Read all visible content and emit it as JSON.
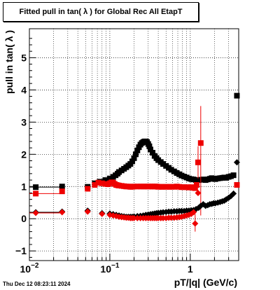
{
  "title": "Fitted pull in tan( λ ) for Global Rec All EtapT",
  "timestamp": "Thu Dec 12 08:23:11 2024",
  "chart_data": {
    "type": "scatter",
    "title": "Fitted pull in tan( λ ) for Global Rec All EtapT",
    "xlabel": "pT/|q| (GeV/c)",
    "ylabel": "pull in tan( λ )",
    "xscale": "log",
    "xlim": [
      0.01,
      4.0
    ],
    "ylim": [
      -1.3,
      5.9
    ],
    "grid": true,
    "x_tick_labels": [
      {
        "value": 0.01,
        "base": "10",
        "exp": "−2"
      },
      {
        "value": 0.1,
        "base": "10",
        "exp": "−1"
      },
      {
        "value": 1,
        "base": "1",
        "exp": ""
      }
    ],
    "y_tick_labels": [
      "−1",
      "0",
      "1",
      "2",
      "3",
      "4",
      "5"
    ],
    "y_tick_values": [
      -1,
      0,
      1,
      2,
      3,
      4,
      5
    ],
    "series": [
      {
        "color": "#000000",
        "marker": "square",
        "points": [
          [
            0.012,
            0.98
          ],
          [
            0.0255,
            1.0
          ],
          [
            0.053,
            0.99
          ],
          [
            0.065,
            1.1
          ],
          [
            0.075,
            1.15
          ],
          [
            0.088,
            1.2
          ],
          [
            0.1,
            1.25
          ],
          [
            0.11,
            1.3
          ],
          [
            0.118,
            1.35
          ],
          [
            0.125,
            1.4
          ],
          [
            0.13,
            1.45
          ],
          [
            0.14,
            1.5
          ],
          [
            0.15,
            1.55
          ],
          [
            0.16,
            1.6
          ],
          [
            0.17,
            1.65
          ],
          [
            0.18,
            1.7
          ],
          [
            0.19,
            1.78
          ],
          [
            0.2,
            1.88
          ],
          [
            0.21,
            2.0
          ],
          [
            0.22,
            2.12
          ],
          [
            0.23,
            2.22
          ],
          [
            0.24,
            2.3
          ],
          [
            0.25,
            2.35
          ],
          [
            0.26,
            2.38
          ],
          [
            0.27,
            2.4
          ],
          [
            0.28,
            2.4
          ],
          [
            0.29,
            2.38
          ],
          [
            0.3,
            2.32
          ],
          [
            0.31,
            2.25
          ],
          [
            0.32,
            2.15
          ],
          [
            0.34,
            2.05
          ],
          [
            0.36,
            1.95
          ],
          [
            0.38,
            1.88
          ],
          [
            0.4,
            1.82
          ],
          [
            0.43,
            1.76
          ],
          [
            0.46,
            1.7
          ],
          [
            0.5,
            1.64
          ],
          [
            0.54,
            1.58
          ],
          [
            0.58,
            1.52
          ],
          [
            0.63,
            1.47
          ],
          [
            0.68,
            1.42
          ],
          [
            0.73,
            1.38
          ],
          [
            0.78,
            1.34
          ],
          [
            0.84,
            1.31
          ],
          [
            0.9,
            1.28
          ],
          [
            0.96,
            1.25
          ],
          [
            1.03,
            1.23
          ],
          [
            1.1,
            1.22
          ],
          [
            1.18,
            1.2
          ],
          [
            1.27,
            1.2
          ],
          [
            1.35,
            1.21
          ],
          [
            1.45,
            1.22
          ],
          [
            1.55,
            1.2
          ],
          [
            1.65,
            1.22
          ],
          [
            1.75,
            1.24
          ],
          [
            1.85,
            1.26
          ],
          [
            1.95,
            1.24
          ],
          [
            2.05,
            1.23
          ],
          [
            2.2,
            1.25
          ],
          [
            2.35,
            1.26
          ],
          [
            2.5,
            1.27
          ],
          [
            2.65,
            1.28
          ],
          [
            2.8,
            1.27
          ],
          [
            3.0,
            1.3
          ],
          [
            3.2,
            1.32
          ],
          [
            3.45,
            1.35
          ],
          [
            3.8,
            3.82
          ]
        ]
      },
      {
        "color": "#ee0000",
        "marker": "square",
        "points": [
          [
            0.012,
            0.78
          ],
          [
            0.0255,
            0.85
          ],
          [
            0.053,
            0.93
          ],
          [
            0.065,
            1.05
          ],
          [
            0.072,
            1.12
          ],
          [
            0.08,
            1.1
          ],
          [
            0.088,
            1.08
          ],
          [
            0.095,
            1.07
          ],
          [
            0.1,
            1.1
          ],
          [
            0.105,
            1.13
          ],
          [
            0.11,
            1.12
          ],
          [
            0.115,
            1.08
          ],
          [
            0.12,
            1.05
          ],
          [
            0.125,
            1.04
          ],
          [
            0.13,
            1.03
          ],
          [
            0.14,
            1.02
          ],
          [
            0.15,
            1.01
          ],
          [
            0.16,
            1.0
          ],
          [
            0.17,
            1.0
          ],
          [
            0.18,
            0.99
          ],
          [
            0.19,
            0.99
          ],
          [
            0.2,
            1.0
          ],
          [
            0.22,
            1.0
          ],
          [
            0.24,
            1.0
          ],
          [
            0.26,
            1.0
          ],
          [
            0.28,
            1.0
          ],
          [
            0.3,
            1.0
          ],
          [
            0.32,
            1.0
          ],
          [
            0.34,
            1.0
          ],
          [
            0.36,
            1.0
          ],
          [
            0.38,
            1.0
          ],
          [
            0.4,
            0.99
          ],
          [
            0.43,
            0.99
          ],
          [
            0.46,
            0.99
          ],
          [
            0.5,
            0.99
          ],
          [
            0.54,
            0.99
          ],
          [
            0.58,
            0.99
          ],
          [
            0.63,
            0.99
          ],
          [
            0.68,
            1.0
          ],
          [
            0.73,
            0.99
          ],
          [
            0.78,
            0.98
          ],
          [
            0.84,
            0.98
          ],
          [
            0.9,
            0.98
          ],
          [
            0.96,
            0.97
          ],
          [
            1.03,
            0.98
          ],
          [
            1.1,
            0.96
          ],
          [
            1.15,
            0.95
          ],
          [
            1.2,
            1.05
          ],
          [
            1.25,
            1.75
          ],
          [
            1.35,
            2.35
          ],
          [
            3.8,
            1.05
          ]
        ],
        "error_bars": [
          {
            "x": 1.35,
            "low": 0.1,
            "high": 3.5
          },
          {
            "x": 1.25,
            "low": 1.25,
            "high": 2.25
          }
        ]
      },
      {
        "color": "#000000",
        "marker": "diamond",
        "points": [
          [
            0.012,
            0.2
          ],
          [
            0.0255,
            0.22
          ],
          [
            0.053,
            0.25
          ],
          [
            0.08,
            0.17
          ],
          [
            0.1,
            0.16
          ],
          [
            0.11,
            0.14
          ],
          [
            0.12,
            0.12
          ],
          [
            0.13,
            0.1
          ],
          [
            0.14,
            0.08
          ],
          [
            0.15,
            0.07
          ],
          [
            0.16,
            0.06
          ],
          [
            0.17,
            0.06
          ],
          [
            0.18,
            0.06
          ],
          [
            0.19,
            0.06
          ],
          [
            0.2,
            0.07
          ],
          [
            0.22,
            0.08
          ],
          [
            0.24,
            0.09
          ],
          [
            0.26,
            0.1
          ],
          [
            0.28,
            0.12
          ],
          [
            0.3,
            0.13
          ],
          [
            0.32,
            0.14
          ],
          [
            0.34,
            0.15
          ],
          [
            0.36,
            0.16
          ],
          [
            0.38,
            0.17
          ],
          [
            0.4,
            0.18
          ],
          [
            0.43,
            0.19
          ],
          [
            0.46,
            0.2
          ],
          [
            0.5,
            0.21
          ],
          [
            0.54,
            0.22
          ],
          [
            0.58,
            0.22
          ],
          [
            0.63,
            0.23
          ],
          [
            0.68,
            0.23
          ],
          [
            0.73,
            0.24
          ],
          [
            0.78,
            0.24
          ],
          [
            0.84,
            0.24
          ],
          [
            0.9,
            0.25
          ],
          [
            0.96,
            0.25
          ],
          [
            1.03,
            0.26
          ],
          [
            1.1,
            0.27
          ],
          [
            1.18,
            0.3
          ],
          [
            1.27,
            0.34
          ],
          [
            1.35,
            0.4
          ],
          [
            1.45,
            0.45
          ],
          [
            1.55,
            0.4
          ],
          [
            1.65,
            0.42
          ],
          [
            1.75,
            0.45
          ],
          [
            1.85,
            0.46
          ],
          [
            1.95,
            0.48
          ],
          [
            2.05,
            0.48
          ],
          [
            2.2,
            0.5
          ],
          [
            2.35,
            0.52
          ],
          [
            2.5,
            0.54
          ],
          [
            2.65,
            0.56
          ],
          [
            2.8,
            0.6
          ],
          [
            3.0,
            0.65
          ],
          [
            3.2,
            0.7
          ],
          [
            3.45,
            0.78
          ],
          [
            3.8,
            1.75
          ]
        ]
      },
      {
        "color": "#ee0000",
        "marker": "diamond",
        "points": [
          [
            0.012,
            0.18
          ],
          [
            0.0255,
            0.2
          ],
          [
            0.053,
            0.22
          ],
          [
            0.08,
            0.15
          ],
          [
            0.1,
            0.12
          ],
          [
            0.11,
            0.1
          ],
          [
            0.12,
            0.08
          ],
          [
            0.13,
            0.06
          ],
          [
            0.14,
            0.05
          ],
          [
            0.15,
            0.04
          ],
          [
            0.16,
            0.03
          ],
          [
            0.17,
            0.03
          ],
          [
            0.18,
            0.02
          ],
          [
            0.19,
            0.02
          ],
          [
            0.2,
            0.02
          ],
          [
            0.22,
            0.02
          ],
          [
            0.24,
            0.02
          ],
          [
            0.26,
            0.02
          ],
          [
            0.28,
            0.02
          ],
          [
            0.3,
            0.02
          ],
          [
            0.32,
            0.02
          ],
          [
            0.34,
            0.02
          ],
          [
            0.36,
            0.02
          ],
          [
            0.38,
            0.02
          ],
          [
            0.4,
            0.02
          ],
          [
            0.43,
            0.02
          ],
          [
            0.46,
            0.02
          ],
          [
            0.5,
            0.02
          ],
          [
            0.54,
            0.03
          ],
          [
            0.58,
            0.03
          ],
          [
            0.63,
            0.03
          ],
          [
            0.68,
            0.04
          ],
          [
            0.73,
            0.05
          ],
          [
            0.78,
            0.06
          ],
          [
            0.84,
            0.08
          ],
          [
            0.9,
            0.1
          ],
          [
            0.96,
            0.12
          ],
          [
            1.03,
            0.15
          ],
          [
            1.1,
            0.2
          ],
          [
            1.15,
            -0.15
          ],
          [
            1.25,
            0.8
          ]
        ],
        "error_bars": [
          {
            "x": 1.15,
            "low": -0.4,
            "high": 0.15
          }
        ]
      }
    ]
  }
}
